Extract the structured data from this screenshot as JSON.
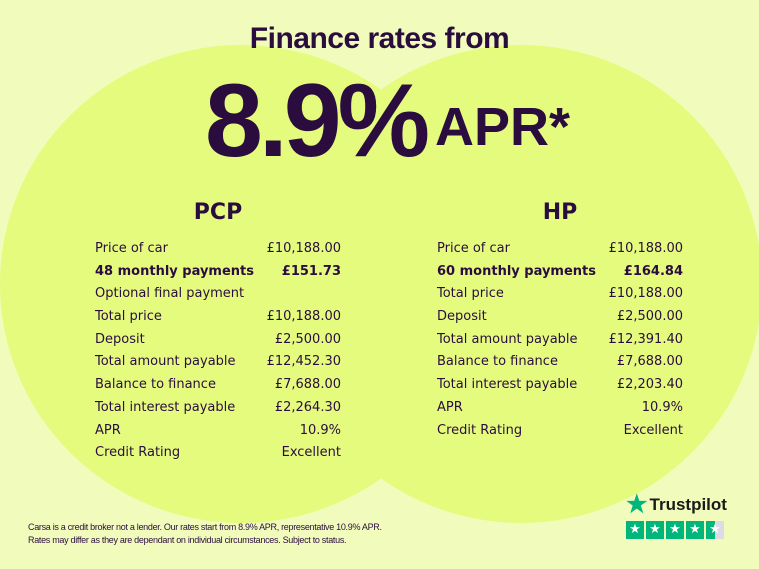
{
  "headline": "Finance rates from",
  "rate": "8.9%",
  "rate_suffix": "APR*",
  "colors": {
    "background": "#f1fcbc",
    "circle": "#e5fb7e",
    "text": "#2a0d3e",
    "trustpilot": "#00b67a"
  },
  "pcp": {
    "title": "PCP",
    "rows": [
      {
        "label": "Price of car",
        "value": "£10,188.00"
      },
      {
        "label": "48 monthly payments",
        "value": "£151.73",
        "bold": true
      },
      {
        "label": "Optional final payment",
        "value": ""
      },
      {
        "label": "Total price",
        "value": "£10,188.00"
      },
      {
        "label": "Deposit",
        "value": "£2,500.00"
      },
      {
        "label": "Total amount payable",
        "value": "£12,452.30"
      },
      {
        "label": "Balance to finance",
        "value": "£7,688.00"
      },
      {
        "label": "Total interest payable",
        "value": "£2,264.30"
      },
      {
        "label": "APR",
        "value": "10.9%"
      },
      {
        "label": "Credit Rating",
        "value": "Excellent"
      }
    ]
  },
  "hp": {
    "title": "HP",
    "rows": [
      {
        "label": "Price of car",
        "value": "£10,188.00"
      },
      {
        "label": "60 monthly payments",
        "value": "£164.84",
        "bold": true
      },
      {
        "label": "Total price",
        "value": "£10,188.00"
      },
      {
        "label": "Deposit",
        "value": "£2,500.00"
      },
      {
        "label": "Total amount payable",
        "value": "£12,391.40"
      },
      {
        "label": "Balance to finance",
        "value": "£7,688.00"
      },
      {
        "label": "Total interest payable",
        "value": "£2,203.40"
      },
      {
        "label": "APR",
        "value": "10.9%"
      },
      {
        "label": "Credit Rating",
        "value": "Excellent"
      }
    ]
  },
  "disclaimer": {
    "line1": "Carsa is a credit broker not a lender. Our rates start from 8.9% APR, representative 10.9% APR.",
    "line2": "Rates may differ as they are dependant on individual circumstances. Subject to status."
  },
  "trustpilot": {
    "name": "Trustpilot",
    "rating_stars": 4.5,
    "max_stars": 5
  }
}
